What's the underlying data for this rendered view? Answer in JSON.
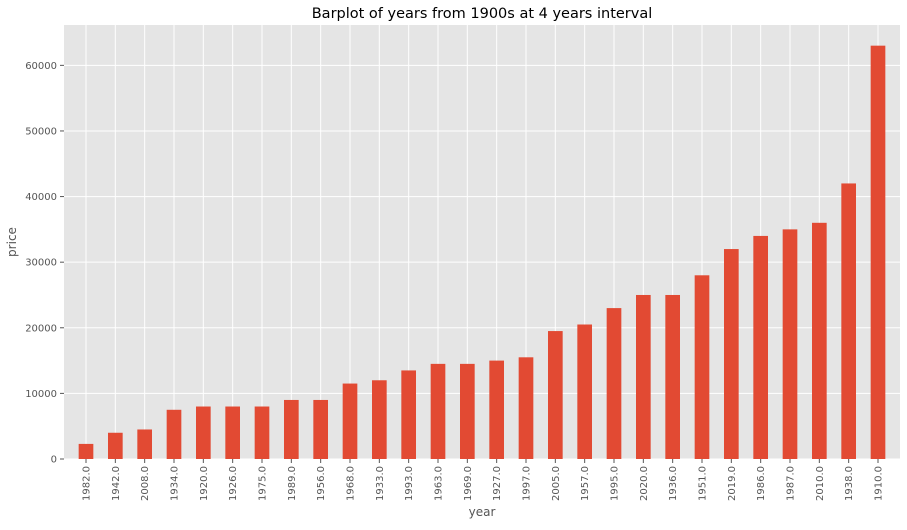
{
  "chart_data": {
    "type": "bar",
    "title": "Barplot of years from 1900s at 4 years interval",
    "xlabel": "year",
    "ylabel": "price",
    "categories": [
      "1982.0",
      "1942.0",
      "2008.0",
      "1934.0",
      "1920.0",
      "1926.0",
      "1975.0",
      "1989.0",
      "1956.0",
      "1968.0",
      "1933.0",
      "1993.0",
      "1963.0",
      "1969.0",
      "1927.0",
      "1997.0",
      "2005.0",
      "1957.0",
      "1995.0",
      "2020.0",
      "1936.0",
      "1951.0",
      "2019.0",
      "1986.0",
      "1987.0",
      "2010.0",
      "1938.0",
      "1910.0"
    ],
    "values": [
      2300,
      4000,
      4500,
      7500,
      8000,
      8000,
      8000,
      9000,
      9000,
      11500,
      12000,
      13500,
      14500,
      14500,
      15000,
      15500,
      19500,
      20500,
      23000,
      25000,
      25000,
      28000,
      32000,
      34000,
      35000,
      36000,
      42000,
      63000
    ],
    "ylim": [
      0,
      66150
    ],
    "yticks": [
      0,
      10000,
      20000,
      30000,
      40000,
      50000,
      60000
    ],
    "ytick_labels": [
      "0",
      "10000",
      "20000",
      "30000",
      "40000",
      "50000",
      "60000"
    ],
    "grid": true,
    "legend": false,
    "colors": {
      "bar": "#E24A33",
      "background": "#E5E5E5",
      "grid": "#FFFFFF",
      "text": "#555555"
    }
  }
}
